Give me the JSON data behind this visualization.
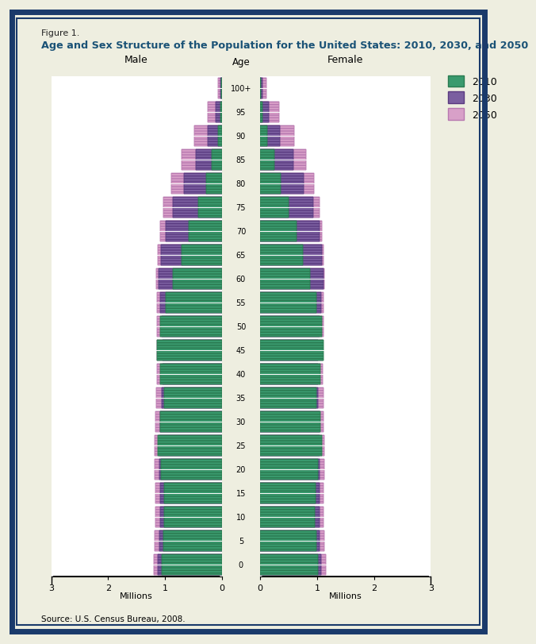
{
  "title_line1": "Figure 1.",
  "title_line2": "Age and Sex Structure of the Population for the United States: 2010, 2030, and 2050",
  "source": "Source: U.S. Census Bureau, 2008.",
  "age_labels": [
    "0",
    "5",
    "10",
    "15",
    "20",
    "25",
    "30",
    "35",
    "40",
    "45",
    "50",
    "55",
    "60",
    "65",
    "70",
    "75",
    "80",
    "85",
    "90",
    "95",
    "100+"
  ],
  "color_2010": "#3a9a6e",
  "color_2030": "#7b5fa0",
  "color_2050": "#d8a0c8",
  "edge_2010": "#2a7a50",
  "edge_2030": "#5a3a80",
  "edge_2050": "#b878b0",
  "male_2010": [
    1.05,
    1.03,
    1.01,
    1.02,
    1.07,
    1.12,
    1.09,
    1.02,
    1.08,
    1.14,
    1.09,
    0.99,
    0.86,
    0.71,
    0.58,
    0.42,
    0.28,
    0.17,
    0.07,
    0.025,
    0.005
  ],
  "male_2030": [
    1.12,
    1.1,
    1.09,
    1.09,
    1.1,
    1.1,
    1.08,
    1.06,
    1.04,
    1.04,
    1.06,
    1.09,
    1.11,
    1.07,
    0.99,
    0.86,
    0.67,
    0.46,
    0.25,
    0.1,
    0.025
  ],
  "male_2050": [
    1.2,
    1.18,
    1.17,
    1.17,
    1.18,
    1.18,
    1.17,
    1.15,
    1.14,
    1.14,
    1.14,
    1.14,
    1.15,
    1.13,
    1.09,
    1.03,
    0.89,
    0.71,
    0.48,
    0.24,
    0.07
  ],
  "female_2010": [
    1.01,
    0.99,
    0.96,
    0.98,
    1.02,
    1.08,
    1.06,
    0.99,
    1.06,
    1.12,
    1.08,
    0.99,
    0.87,
    0.75,
    0.64,
    0.5,
    0.36,
    0.25,
    0.12,
    0.045,
    0.012
  ],
  "female_2030": [
    1.07,
    1.05,
    1.04,
    1.04,
    1.05,
    1.05,
    1.04,
    1.02,
    1.01,
    1.01,
    1.04,
    1.07,
    1.11,
    1.09,
    1.04,
    0.93,
    0.77,
    0.58,
    0.34,
    0.15,
    0.042
  ],
  "female_2050": [
    1.15,
    1.13,
    1.12,
    1.12,
    1.13,
    1.13,
    1.12,
    1.11,
    1.1,
    1.1,
    1.11,
    1.11,
    1.13,
    1.12,
    1.09,
    1.05,
    0.94,
    0.8,
    0.6,
    0.33,
    0.11
  ],
  "xlim": 3.0,
  "background_outer": "#eeeee0",
  "background_plot": "#ffffff",
  "border_color": "#1a3a6b",
  "title_color": "#1a5276",
  "bar_height": 0.85
}
